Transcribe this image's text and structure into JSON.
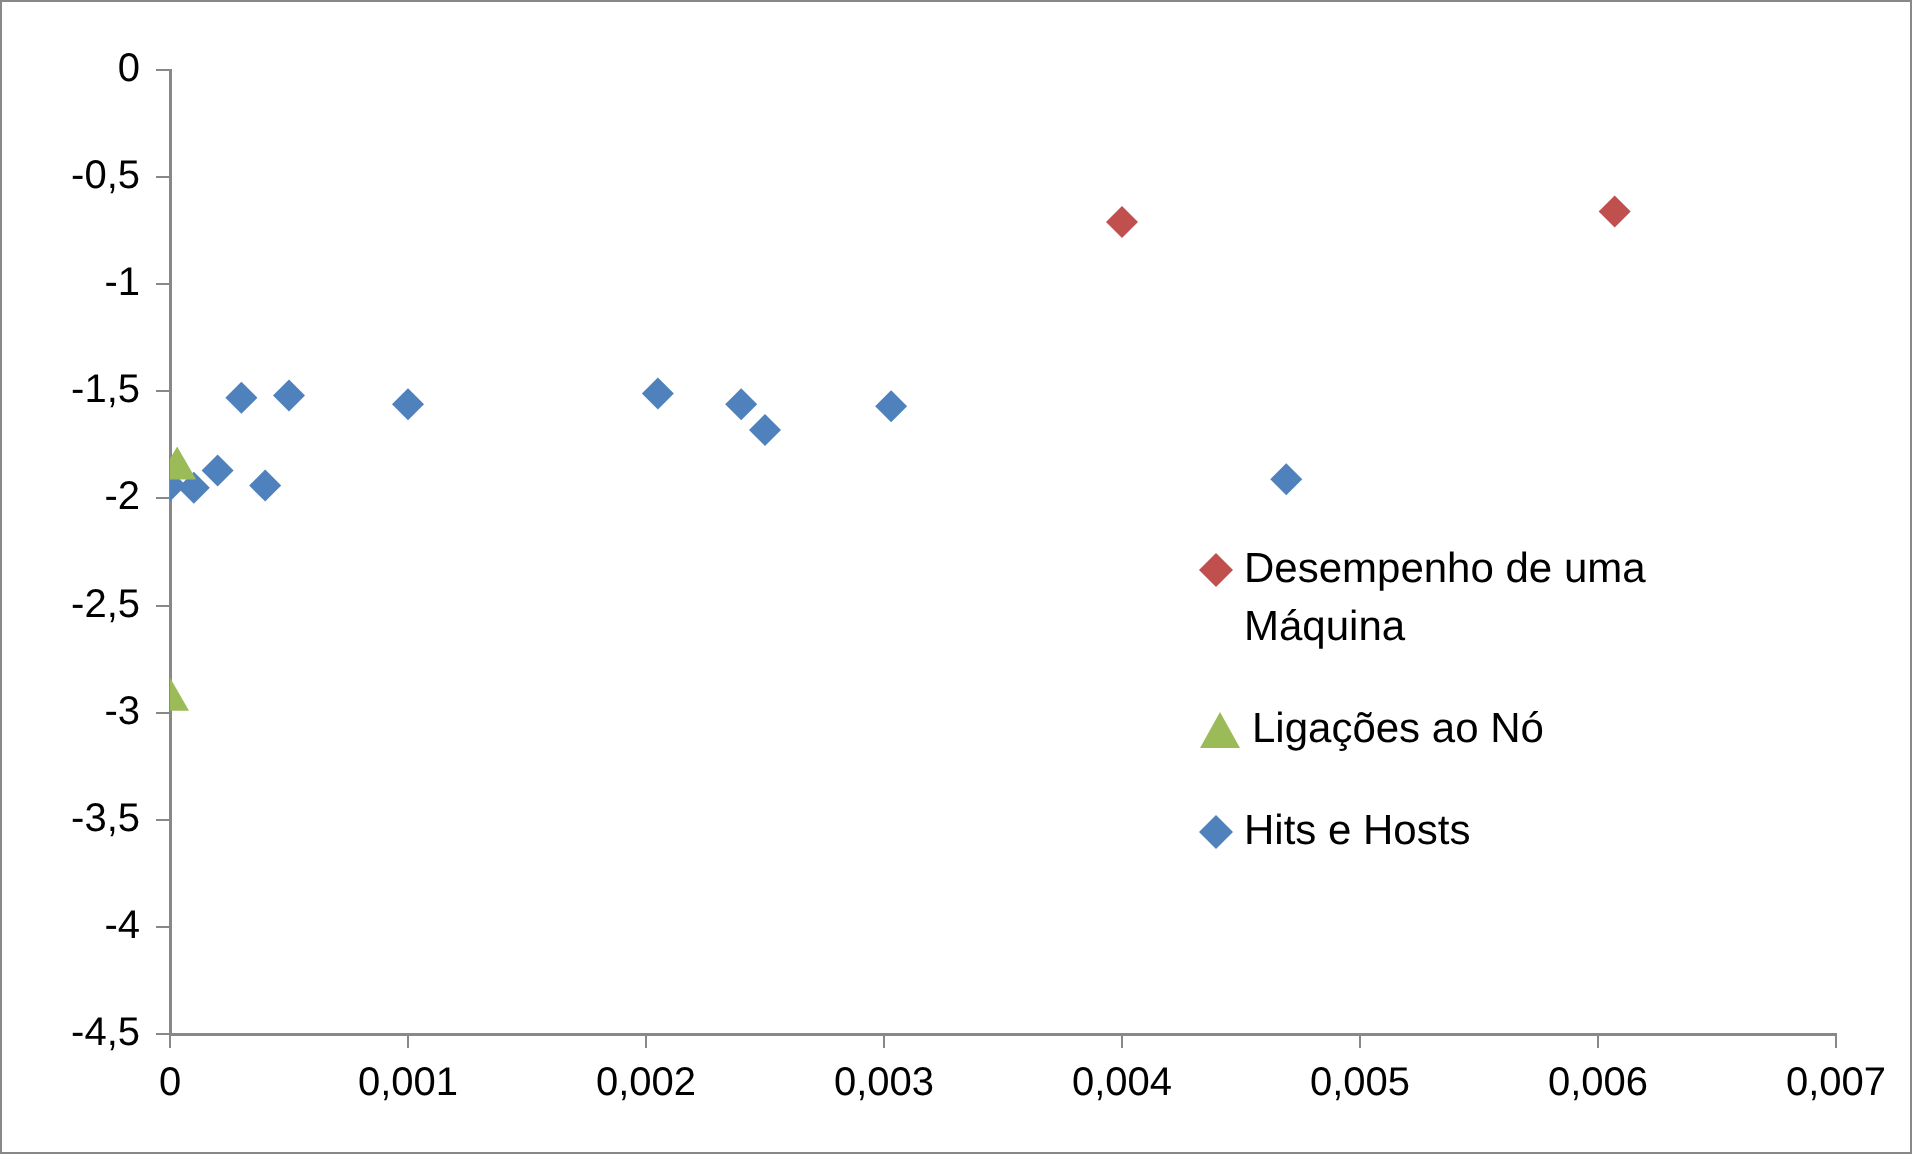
{
  "chart_data": {
    "type": "scatter",
    "xlim": [
      0,
      0.007
    ],
    "xticks": [
      {
        "value": 0,
        "label": "0"
      },
      {
        "value": 0.001,
        "label": "0,001"
      },
      {
        "value": 0.002,
        "label": "0,002"
      },
      {
        "value": 0.003,
        "label": "0,003"
      },
      {
        "value": 0.004,
        "label": "0,004"
      },
      {
        "value": 0.005,
        "label": "0,005"
      },
      {
        "value": 0.006,
        "label": "0,006"
      },
      {
        "value": 0.007,
        "label": "0,007"
      }
    ],
    "ylim": [
      -4.5,
      0
    ],
    "yticks": [
      {
        "value": -4.5,
        "label": "-4,5"
      },
      -4,
      {
        "value": -3.5,
        "label": "-3,5"
      },
      -3,
      {
        "value": -2.5,
        "label": "-2,5"
      },
      -2,
      {
        "value": -1.5,
        "label": "-1,5"
      },
      -1,
      {
        "value": -0.5,
        "label": "-0,5"
      },
      0
    ],
    "grid": false,
    "legend": "right",
    "series": [
      {
        "name": "Desempenho de uma Máquina",
        "color": "#c0504d",
        "marker": "diamond",
        "x": [
          0.004,
          0.00607
        ],
        "values": [
          -0.71,
          -0.66
        ]
      },
      {
        "name": "Ligações ao Nó",
        "color": "#9bbb59",
        "marker": "triangle",
        "x": [
          3e-05,
          0
        ],
        "values": [
          -1.86,
          -2.94
        ]
      },
      {
        "name": "Hits e Hosts",
        "color": "#4f81bd",
        "marker": "diamond",
        "x": [
          0.0003,
          0.0005,
          0.001,
          0.0002,
          0,
          0.0001,
          0.0004,
          0.00205,
          0.0024,
          0.0025,
          0.00303,
          0.00469
        ],
        "values": [
          -1.53,
          -1.52,
          -1.56,
          -1.87,
          -1.94,
          -1.95,
          -1.94,
          -1.51,
          -1.56,
          -1.68,
          -1.57,
          -1.91
        ]
      }
    ]
  }
}
